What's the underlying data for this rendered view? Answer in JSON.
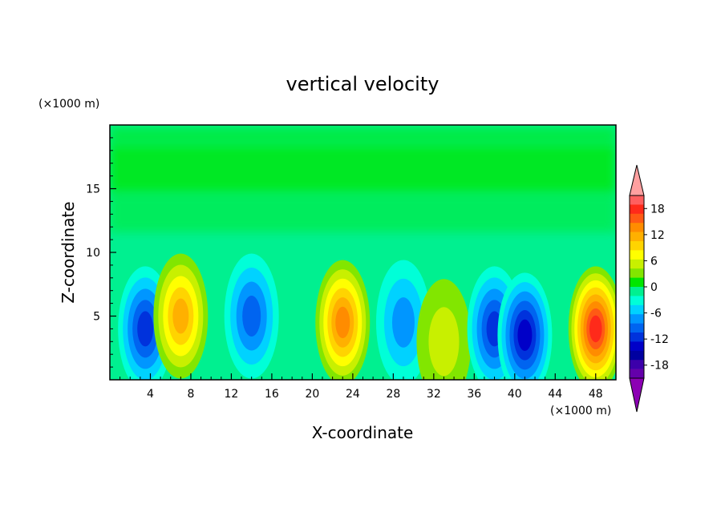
{
  "chart_data": {
    "type": "heatmap",
    "title": "vertical velocity",
    "xlabel": "X-coordinate",
    "ylabel": "Z-coordinate",
    "x_unit": "(×1000 m)",
    "y_unit": "(×1000 m)",
    "xlim": [
      0,
      50
    ],
    "ylim": [
      0,
      20
    ],
    "x_ticks": [
      4,
      8,
      12,
      16,
      20,
      24,
      28,
      32,
      36,
      40,
      44,
      48
    ],
    "y_ticks": [
      5,
      10,
      15
    ],
    "colorbar": {
      "labels": [
        18,
        12,
        6,
        0,
        -6,
        -12,
        -18
      ],
      "levels_top_to_bottom": [
        "#ff5f5f",
        "#ff2a1a",
        "#ff5a14",
        "#ff8c00",
        "#ffb000",
        "#ffd400",
        "#ffff00",
        "#c8f000",
        "#82e600",
        "#00e600",
        "#00f090",
        "#00ffd8",
        "#00d2ff",
        "#0096ff",
        "#0064f0",
        "#0032dc",
        "#0000c8",
        "#0000a0",
        "#3c00aa",
        "#6400aa"
      ],
      "upper_extend_color": "#ffa0a0",
      "lower_extend_color": "#8c00b4"
    },
    "features": [
      {
        "x": 3.5,
        "z": 4,
        "w": -12
      },
      {
        "x": 7.0,
        "z": 5,
        "w": 12
      },
      {
        "x": 14.0,
        "z": 5,
        "w": -9
      },
      {
        "x": 23.0,
        "z": 4.5,
        "w": 15
      },
      {
        "x": 29.0,
        "z": 4.5,
        "w": -6
      },
      {
        "x": 33.0,
        "z": 3,
        "w": 3
      },
      {
        "x": 38.0,
        "z": 4,
        "w": -12
      },
      {
        "x": 41.0,
        "z": 3.5,
        "w": -15
      },
      {
        "x": 48.0,
        "z": 4,
        "w": 18
      }
    ]
  }
}
